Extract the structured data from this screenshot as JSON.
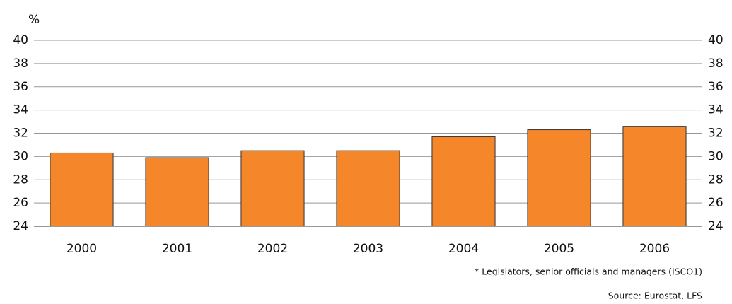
{
  "chart_data": {
    "type": "bar",
    "y_label": "%",
    "categories": [
      "2000",
      "2001",
      "2002",
      "2003",
      "2004",
      "2005",
      "2006"
    ],
    "values": [
      30.3,
      29.9,
      30.5,
      30.5,
      31.7,
      32.3,
      32.6
    ],
    "color": "#f5862a",
    "ylim": [
      24,
      40
    ],
    "yticks": [
      24,
      26,
      28,
      30,
      32,
      34,
      36,
      38,
      40
    ],
    "grid": true,
    "footnote": "* Legislators, senior officials and managers (ISCO1)",
    "source": "Source: Eurostat, LFS"
  }
}
